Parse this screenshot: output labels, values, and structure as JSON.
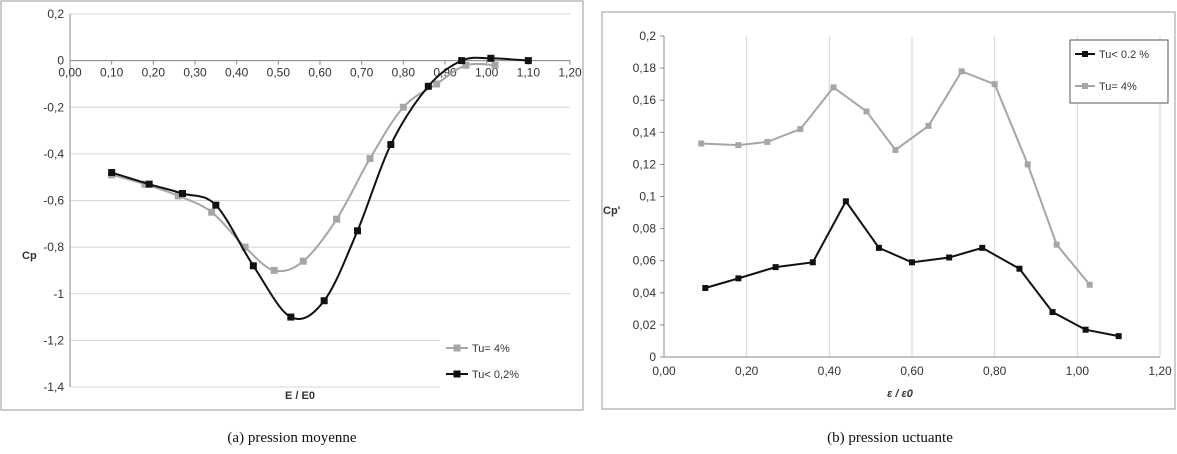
{
  "chart_data": [
    {
      "type": "line",
      "caption": "(a) pression moyenne",
      "xlabel": "E / E0",
      "ylabel": "Cp",
      "xlim": [
        0,
        1.2
      ],
      "ylim": [
        -1.4,
        0.2
      ],
      "x_ticks": [
        "0,00",
        "0,10",
        "0,20",
        "0,30",
        "0,40",
        "0,50",
        "0,60",
        "0,70",
        "0,80",
        "0,90",
        "1,00",
        "1,10",
        "1,20"
      ],
      "y_ticks": [
        "0,2",
        "0",
        "-0,2",
        "-0,4",
        "-0,6",
        "-0,8",
        "-1",
        "-1,2",
        "-1,4"
      ],
      "grid": "horizontal",
      "legend_position": "bottom-right",
      "series": [
        {
          "name": "Tu= 4%",
          "color": "#a6a6a6",
          "points": [
            [
              0.1,
              -0.49
            ],
            [
              0.18,
              -0.53
            ],
            [
              0.26,
              -0.58
            ],
            [
              0.34,
              -0.65
            ],
            [
              0.42,
              -0.8
            ],
            [
              0.49,
              -0.9
            ],
            [
              0.56,
              -0.86
            ],
            [
              0.64,
              -0.68
            ],
            [
              0.72,
              -0.42
            ],
            [
              0.8,
              -0.2
            ],
            [
              0.88,
              -0.1
            ],
            [
              0.95,
              -0.02
            ],
            [
              1.02,
              -0.02
            ]
          ]
        },
        {
          "name": "Tu< 0,2%",
          "color": "#111111",
          "points": [
            [
              0.1,
              -0.48
            ],
            [
              0.19,
              -0.53
            ],
            [
              0.27,
              -0.57
            ],
            [
              0.35,
              -0.62
            ],
            [
              0.44,
              -0.88
            ],
            [
              0.53,
              -1.1
            ],
            [
              0.61,
              -1.03
            ],
            [
              0.69,
              -0.73
            ],
            [
              0.77,
              -0.36
            ],
            [
              0.86,
              -0.11
            ],
            [
              0.94,
              0.0
            ],
            [
              1.01,
              0.01
            ],
            [
              1.1,
              0.0
            ]
          ]
        }
      ]
    },
    {
      "type": "line",
      "caption": "(b) pression uctuante",
      "xlabel": "ε / ε0",
      "ylabel": "Cp'",
      "xlim": [
        0,
        1.2
      ],
      "ylim": [
        0,
        0.2
      ],
      "x_ticks": [
        "0,00",
        "0,20",
        "0,40",
        "0,60",
        "0,80",
        "1,00",
        "1,20"
      ],
      "y_ticks": [
        "0,2",
        "0,18",
        "0,16",
        "0,14",
        "0,12",
        "0,1",
        "0,08",
        "0,06",
        "0,04",
        "0,02",
        "0"
      ],
      "grid": "vertical",
      "legend_position": "top-right",
      "series": [
        {
          "name": "Tu< 0.2 %",
          "color": "#111111",
          "points": [
            [
              0.1,
              0.043
            ],
            [
              0.18,
              0.049
            ],
            [
              0.27,
              0.056
            ],
            [
              0.36,
              0.059
            ],
            [
              0.44,
              0.097
            ],
            [
              0.52,
              0.068
            ],
            [
              0.6,
              0.059
            ],
            [
              0.69,
              0.062
            ],
            [
              0.77,
              0.068
            ],
            [
              0.86,
              0.055
            ],
            [
              0.94,
              0.028
            ],
            [
              1.02,
              0.017
            ],
            [
              1.1,
              0.013
            ]
          ]
        },
        {
          "name": "Tu= 4%",
          "color": "#a6a6a6",
          "points": [
            [
              0.09,
              0.133
            ],
            [
              0.18,
              0.132
            ],
            [
              0.25,
              0.134
            ],
            [
              0.33,
              0.142
            ],
            [
              0.41,
              0.168
            ],
            [
              0.49,
              0.153
            ],
            [
              0.56,
              0.129
            ],
            [
              0.64,
              0.144
            ],
            [
              0.72,
              0.178
            ],
            [
              0.8,
              0.17
            ],
            [
              0.88,
              0.12
            ],
            [
              0.95,
              0.07
            ],
            [
              1.03,
              0.045
            ]
          ]
        }
      ]
    }
  ]
}
